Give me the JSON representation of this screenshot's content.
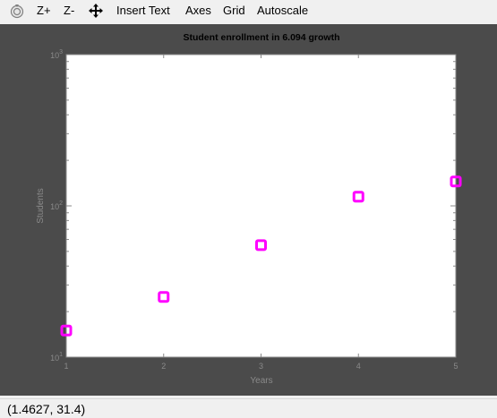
{
  "toolbar": {
    "buttons": [
      {
        "id": "reset",
        "label": "",
        "icon": "reset-view-icon"
      },
      {
        "id": "zoom_in",
        "label": "Z+"
      },
      {
        "id": "zoom_out",
        "label": "Z-"
      },
      {
        "id": "pan",
        "label": "",
        "icon": "pan-arrows-icon"
      },
      {
        "id": "insert_text",
        "label": "Insert Text"
      },
      {
        "id": "axes",
        "label": "Axes"
      },
      {
        "id": "grid",
        "label": "Grid"
      },
      {
        "id": "autoscale",
        "label": "Autoscale"
      }
    ]
  },
  "chart_data": {
    "type": "scatter",
    "title": "Student enrollment in 6.094 growth",
    "xlabel": "Years",
    "ylabel": "Students",
    "xlim": [
      1,
      5
    ],
    "ylim": [
      10,
      1000
    ],
    "yscale": "log",
    "x_ticks": [
      "1",
      "2",
      "3",
      "4",
      "5"
    ],
    "y_ticks": [
      {
        "base": "10",
        "exp": "1",
        "value": 10
      },
      {
        "base": "10",
        "exp": "2",
        "value": 100
      },
      {
        "base": "10",
        "exp": "3",
        "value": 1000
      }
    ],
    "grid": false,
    "marker": "square",
    "marker_color": "#ff00ff",
    "series": [
      {
        "x": [
          1,
          2,
          3,
          4,
          5
        ],
        "y": [
          15,
          25,
          55,
          115,
          145
        ]
      }
    ]
  },
  "colors": {
    "figure_background": "#4b4b4b",
    "axes_background": "#ffffff",
    "axis_text": "#8a8a8a",
    "title_text": "#000000",
    "marker": "#ff00ff"
  },
  "status": {
    "coordinates": "(1.4627, 31.4)"
  }
}
